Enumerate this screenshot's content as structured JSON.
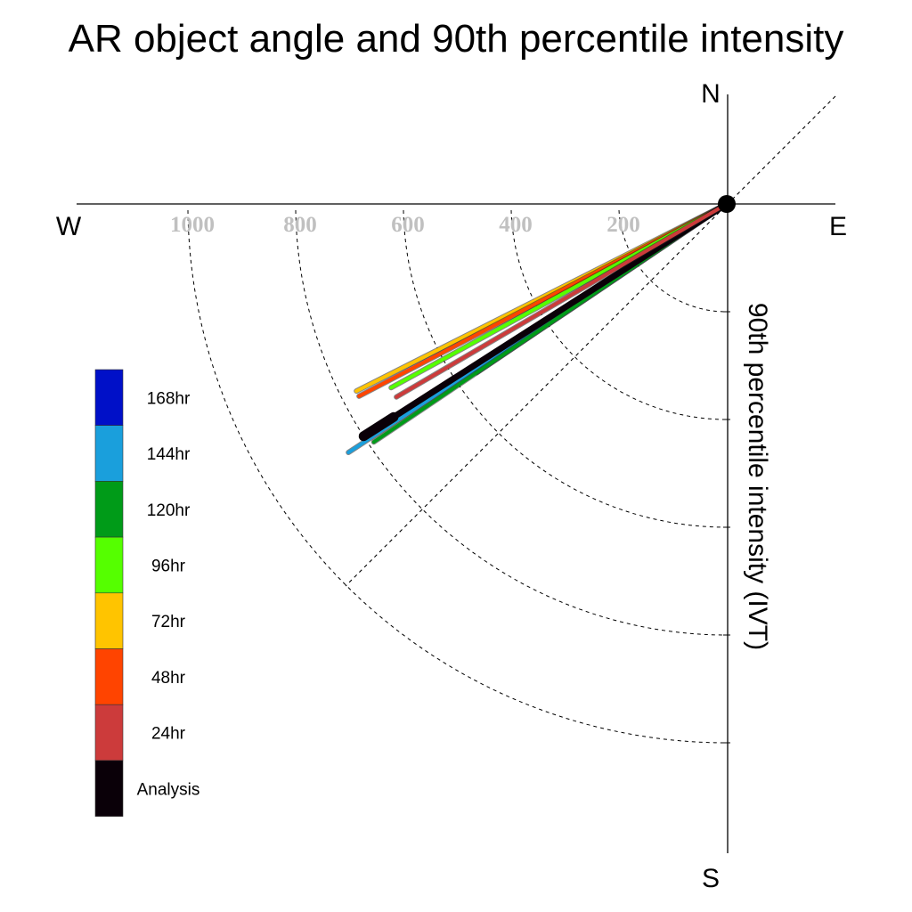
{
  "chart_data": {
    "type": "radial-vector",
    "title": "AR object angle and 90th percentile intensity",
    "ylabel": "90th percentile intensity (IVT)",
    "compass": {
      "north": "N",
      "south": "S",
      "east": "E",
      "west": "W"
    },
    "radial_ticks": [
      "200",
      "400",
      "600",
      "800",
      "1000"
    ],
    "radial_values": [
      200,
      400,
      600,
      800,
      1000
    ],
    "series": [
      {
        "name": "168hr",
        "color": "#0010c8",
        "angle_deg": 236.0,
        "intensity": 560
      },
      {
        "name": "144hr",
        "color": "#1a9fdc",
        "angle_deg": 236.7,
        "intensity": 840
      },
      {
        "name": "120hr",
        "color": "#009b18",
        "angle_deg": 236.0,
        "intensity": 790
      },
      {
        "name": "96hr",
        "color": "#55ff00",
        "angle_deg": 241.3,
        "intensity": 710
      },
      {
        "name": "72hr",
        "color": "#ffc400",
        "angle_deg": 243.2,
        "intensity": 770
      },
      {
        "name": "48hr",
        "color": "#ff4400",
        "angle_deg": 242.4,
        "intensity": 770
      },
      {
        "name": "24hr",
        "color": "#cc3b3b",
        "angle_deg": 239.7,
        "intensity": 710
      },
      {
        "name": "Analysis",
        "color": "#0a0008",
        "angle_deg": 237.4,
        "intensity": 800
      }
    ],
    "grid": true,
    "legend_position": "left"
  }
}
